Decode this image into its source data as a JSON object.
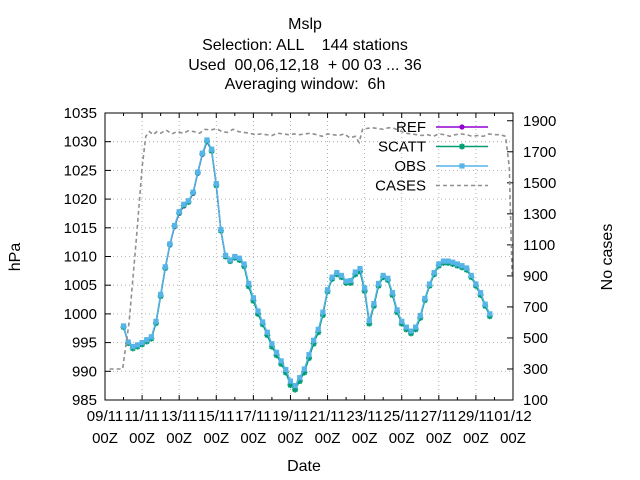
{
  "chart_data": {
    "type": "line",
    "title_lines": [
      "Mslp",
      "Selection: ALL    144 stations",
      "Used  00,06,12,18  + 00 03 ... 36",
      "Averaging window:  6h"
    ],
    "xlabel": "Date",
    "ylabel": "hPa",
    "y2label": "No cases",
    "xlim": [
      0,
      44
    ],
    "ylim": [
      985,
      1035
    ],
    "y2lim": [
      100,
      1950
    ],
    "yticks": [
      985,
      990,
      995,
      1000,
      1005,
      1010,
      1015,
      1020,
      1025,
      1030,
      1035
    ],
    "y2ticks": [
      100,
      300,
      500,
      700,
      900,
      1100,
      1300,
      1500,
      1700,
      1900
    ],
    "xticks": [
      {
        "day": 0,
        "label1": "09/11",
        "label2": "00Z"
      },
      {
        "day": 2,
        "label1": "11/11",
        "label2": "00Z"
      },
      {
        "day": 4,
        "label1": "13/11",
        "label2": "00Z"
      },
      {
        "day": 6,
        "label1": "15/11",
        "label2": "00Z"
      },
      {
        "day": 8,
        "label1": "17/11",
        "label2": "00Z"
      },
      {
        "day": 10,
        "label1": "19/11",
        "label2": "00Z"
      },
      {
        "day": 12,
        "label1": "21/11",
        "label2": "00Z"
      },
      {
        "day": 14,
        "label1": "23/11",
        "label2": "00Z"
      },
      {
        "day": 16,
        "label1": "25/11",
        "label2": "00Z"
      },
      {
        "day": 18,
        "label1": "27/11",
        "label2": "00Z"
      },
      {
        "day": 20,
        "label1": "29/11",
        "label2": "00Z"
      },
      {
        "day": 22,
        "label1": "01/12",
        "label2": "00Z"
      }
    ],
    "x_unit": "days since 09/11 00Z",
    "x": [
      1.0,
      1.25,
      1.5,
      1.75,
      2.0,
      2.25,
      2.5,
      2.75,
      3.0,
      3.25,
      3.5,
      3.75,
      4.0,
      4.25,
      4.5,
      4.75,
      5.0,
      5.25,
      5.5,
      5.75,
      6.0,
      6.25,
      6.5,
      6.75,
      7.0,
      7.25,
      7.5,
      7.75,
      8.0,
      8.25,
      8.5,
      8.75,
      9.0,
      9.25,
      9.5,
      9.75,
      10.0,
      10.25,
      10.5,
      10.75,
      11.0,
      11.25,
      11.5,
      11.75,
      12.0,
      12.25,
      12.5,
      12.75,
      13.0,
      13.25,
      13.5,
      13.75,
      14.0,
      14.25,
      14.5,
      14.75,
      15.0,
      15.25,
      15.5,
      15.75,
      16.0,
      16.25,
      16.5,
      16.75,
      17.0,
      17.25,
      17.5,
      17.75,
      18.0,
      18.25,
      18.5,
      18.75,
      19.0,
      19.25,
      19.5,
      19.75,
      20.0,
      20.25,
      20.5,
      20.75,
      21.0,
      21.25,
      21.5,
      21.75,
      22.0
    ],
    "series": [
      {
        "name": "REF",
        "color": "#9400d3",
        "marker": "circle",
        "axis": "y1",
        "values": [
          997.8,
          995.0,
          994.2,
          994.4,
          994.8,
          995.3,
          995.8,
          998.5,
          1003.2,
          1008.0,
          1012.0,
          1015.2,
          1017.5,
          1018.8,
          1019.5,
          1021.0,
          1024.5,
          1027.8,
          1030.0,
          1028.5,
          1022.5,
          1014.5,
          1010.0,
          1009.2,
          1009.8,
          1009.5,
          1008.5,
          1005.0,
          1002.5,
          1000.2,
          998.3,
          996.5,
          994.5,
          993.0,
          991.5,
          990.0,
          988.0,
          987.0,
          988.5,
          990.0,
          992.5,
          995.0,
          997.0,
          1000.0,
          1004.0,
          1006.2,
          1007.0,
          1006.5,
          1005.5,
          1005.5,
          1007.0,
          1007.5,
          1004.2,
          998.5,
          1001.5,
          1005.0,
          1006.5,
          1006.0,
          1003.5,
          1000.5,
          998.5,
          997.5,
          996.8,
          997.5,
          999.5,
          1002.5,
          1005.0,
          1007.0,
          1008.5,
          1009.0,
          1009.0,
          1008.8,
          1008.5,
          1008.2,
          1007.8,
          1006.5,
          1005.0,
          1003.5,
          1001.5,
          999.8,
          null,
          null,
          null,
          null,
          null
        ]
      },
      {
        "name": "SCATT",
        "color": "#009e73",
        "marker": "star",
        "axis": "y1",
        "values": [
          997.7,
          994.9,
          994.0,
          994.3,
          994.7,
          995.2,
          995.7,
          998.4,
          1003.1,
          1008.0,
          1012.1,
          1015.3,
          1017.6,
          1018.9,
          1019.5,
          1021.1,
          1024.6,
          1027.9,
          1030.1,
          1028.4,
          1022.4,
          1014.5,
          1010.0,
          1009.2,
          1009.8,
          1009.4,
          1008.3,
          1004.8,
          1002.3,
          1000.0,
          998.2,
          996.3,
          994.3,
          992.8,
          991.3,
          989.8,
          987.6,
          986.8,
          988.3,
          989.8,
          992.3,
          994.8,
          996.8,
          999.8,
          1003.9,
          1006.1,
          1006.9,
          1006.4,
          1005.4,
          1005.4,
          1006.9,
          1007.4,
          1004.0,
          998.3,
          1001.4,
          1004.9,
          1006.4,
          1005.9,
          1003.3,
          1000.3,
          998.3,
          997.3,
          996.6,
          997.3,
          999.3,
          1002.4,
          1004.9,
          1006.9,
          1008.4,
          1008.9,
          1008.9,
          1008.7,
          1008.4,
          1008.1,
          1007.7,
          1006.4,
          1004.9,
          1003.3,
          1001.4,
          999.6,
          null,
          null,
          null,
          null,
          null
        ]
      },
      {
        "name": "OBS",
        "color": "#56b4e9",
        "marker": "square",
        "axis": "y1",
        "values": [
          997.9,
          995.1,
          994.3,
          994.6,
          995.0,
          995.5,
          996.0,
          998.7,
          1003.4,
          1008.2,
          1012.2,
          1015.4,
          1017.8,
          1019.1,
          1019.7,
          1021.2,
          1024.7,
          1028.0,
          1030.3,
          1028.7,
          1022.7,
          1014.7,
          1010.2,
          1009.4,
          1010.0,
          1009.7,
          1008.7,
          1005.3,
          1002.8,
          1000.5,
          998.6,
          996.8,
          994.8,
          993.3,
          991.8,
          990.3,
          988.3,
          987.5,
          988.9,
          990.4,
          992.9,
          995.4,
          997.3,
          1000.3,
          1004.2,
          1006.4,
          1007.2,
          1006.7,
          1005.7,
          1005.8,
          1007.3,
          1007.9,
          1004.5,
          998.8,
          1001.8,
          1005.3,
          1006.7,
          1006.2,
          1003.7,
          1000.7,
          998.7,
          997.7,
          997.0,
          997.7,
          999.7,
          1002.7,
          1005.2,
          1007.2,
          1008.7,
          1009.2,
          1009.2,
          1009.0,
          1008.7,
          1008.4,
          1008.0,
          1006.7,
          1005.2,
          1003.7,
          1001.7,
          1000.0,
          null,
          null,
          null,
          null,
          null
        ]
      },
      {
        "name": "CASES",
        "color": "#909090",
        "marker": "none",
        "dashed": true,
        "axis": "y2",
        "x": [
          0.25,
          0.75,
          0.95,
          1.3,
          1.7,
          2.0,
          2.2,
          2.4,
          2.6,
          2.8,
          3.0,
          3.3,
          3.6,
          3.9,
          4.2,
          4.5,
          4.8,
          5.1,
          5.4,
          5.7,
          6.0,
          6.3,
          6.6,
          6.9,
          7.2,
          7.5,
          7.8,
          8.1,
          8.4,
          8.7,
          9.0,
          9.3,
          9.6,
          9.9,
          10.2,
          10.5,
          10.8,
          11.1,
          11.4,
          11.7,
          12.0,
          12.3,
          12.6,
          12.9,
          13.2,
          13.5,
          13.7,
          13.9,
          14.1,
          14.4,
          14.7,
          15.0,
          15.3,
          15.6,
          15.9,
          16.2,
          16.5,
          16.8,
          17.1,
          17.4,
          17.7,
          18.0,
          18.3,
          18.6,
          18.9,
          19.2,
          19.5,
          19.8,
          20.1,
          20.4,
          20.7,
          21.0,
          21.3,
          21.6,
          21.8,
          21.95
        ],
        "values": [
          300,
          300,
          300,
          600,
          1150,
          1600,
          1800,
          1830,
          1810,
          1830,
          1820,
          1840,
          1815,
          1830,
          1820,
          1835,
          1830,
          1820,
          1845,
          1840,
          1850,
          1830,
          1825,
          1845,
          1830,
          1825,
          1820,
          1810,
          1815,
          1810,
          1805,
          1820,
          1815,
          1810,
          1815,
          1810,
          1815,
          1820,
          1810,
          1800,
          1815,
          1810,
          1805,
          1815,
          1790,
          1800,
          1760,
          1850,
          1850,
          1855,
          1850,
          1845,
          1855,
          1850,
          1835,
          1820,
          1815,
          1810,
          1805,
          1810,
          1800,
          1815,
          1810,
          1800,
          1810,
          1815,
          1810,
          1800,
          1805,
          1800,
          1815,
          1810,
          1810,
          1800,
          1600,
          900
        ]
      }
    ],
    "legend": {
      "position": "top-right",
      "entries": [
        "REF",
        "SCATT",
        "OBS",
        "CASES"
      ]
    },
    "grid": true
  }
}
